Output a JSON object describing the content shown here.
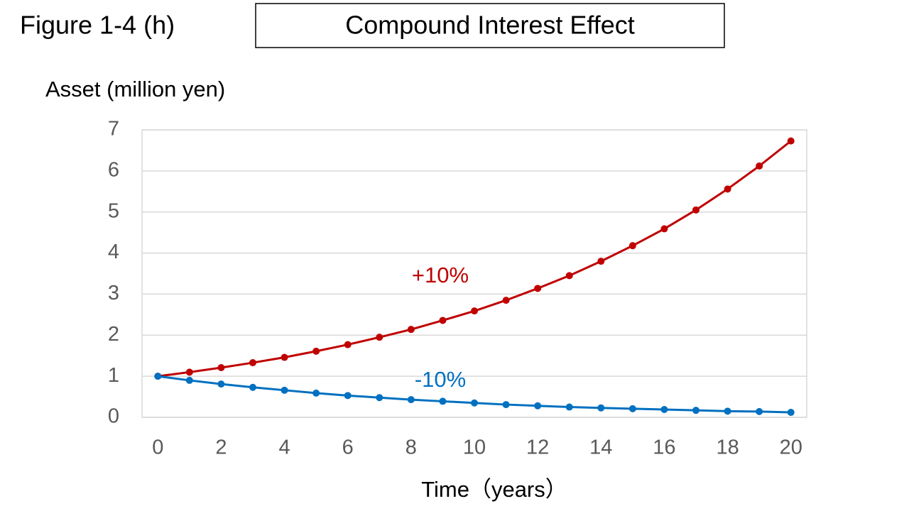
{
  "chart_data": {
    "type": "line",
    "title": "Figure 1-4 (h)",
    "subtitle": "Compound Interest Effect",
    "y_label": "Asset (million yen)",
    "x_label": "Time（years）",
    "x": [
      0,
      1,
      2,
      3,
      4,
      5,
      6,
      7,
      8,
      9,
      10,
      11,
      12,
      13,
      14,
      15,
      16,
      17,
      18,
      19,
      20
    ],
    "series": [
      {
        "name": "+10%",
        "color": "#c00000",
        "values": [
          1,
          1.1,
          1.21,
          1.33,
          1.46,
          1.61,
          1.77,
          1.95,
          2.14,
          2.36,
          2.59,
          2.85,
          3.14,
          3.45,
          3.8,
          4.18,
          4.59,
          5.05,
          5.56,
          6.12,
          6.73
        ]
      },
      {
        "name": "-10%",
        "color": "#0070c0",
        "values": [
          1,
          0.9,
          0.81,
          0.73,
          0.66,
          0.59,
          0.53,
          0.48,
          0.43,
          0.39,
          0.35,
          0.31,
          0.28,
          0.25,
          0.23,
          0.21,
          0.19,
          0.17,
          0.15,
          0.14,
          0.12
        ]
      }
    ],
    "xlim": [
      -0.5,
      20.5
    ],
    "xticks": [
      0,
      2,
      4,
      6,
      8,
      10,
      12,
      14,
      16,
      18,
      20
    ],
    "ylim": [
      0,
      7
    ],
    "yticks": [
      0,
      1,
      2,
      3,
      4,
      5,
      6,
      7
    ],
    "grid": true
  }
}
